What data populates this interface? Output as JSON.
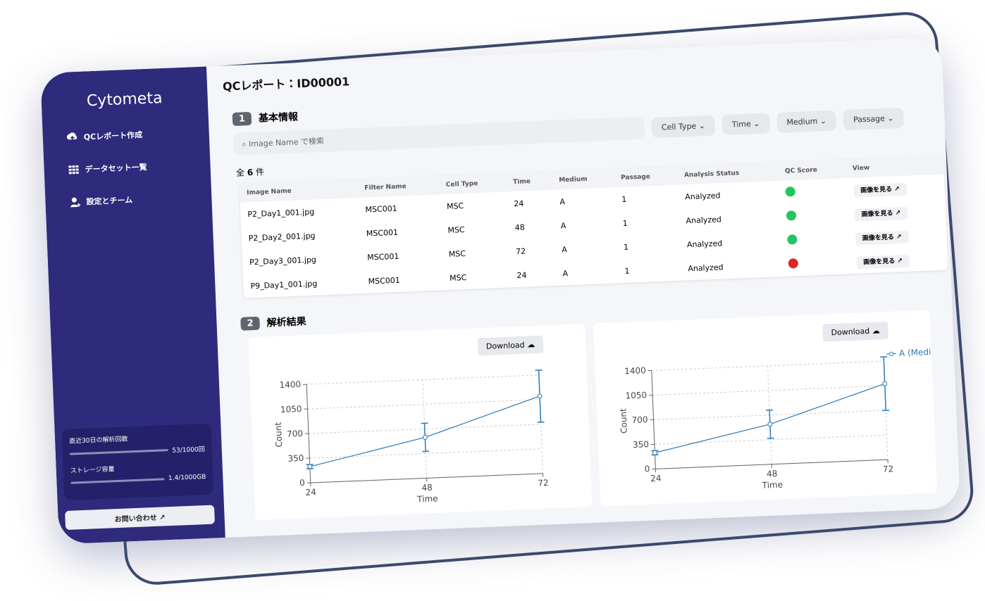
{
  "sidebar": {
    "brand": "Cytometa",
    "nav": [
      "QCレポート作成",
      "データセット一覧",
      "設定とチーム"
    ],
    "usage": [
      {
        "label": "直近30日の解析回数",
        "value": "53/1000回"
      },
      {
        "label": "ストレージ容量",
        "value": "1.4/1000GB"
      }
    ],
    "contact": "お問い合わせ"
  },
  "title": "QCレポート：ID00001",
  "sections": [
    {
      "number": "1",
      "title": "基本情報"
    },
    {
      "number": "2",
      "title": "解析結果"
    }
  ],
  "search": "Image Name で検索",
  "filters": [
    "Cell Type",
    "Time",
    "Medium",
    "Passage"
  ],
  "count": {
    "prefix": "全",
    "value": "6",
    "suffix": "件"
  },
  "table": {
    "header": [
      "Image Name",
      "Filter Name",
      "Cell Type",
      "Time",
      "Medium",
      "Passage",
      "Analysis Status",
      "QC Score",
      "View"
    ],
    "rows": [
      [
        "P2_Day1_001.jpg",
        "MSC001",
        "MSC",
        "24",
        "A",
        "1",
        "Analyzed"
      ],
      [
        "P2_Day2_001.jpg",
        "MSC001",
        "MSC",
        "48",
        "A",
        "1",
        "Analyzed"
      ],
      [
        "P2_Day3_001.jpg",
        "MSC001",
        "MSC",
        "72",
        "A",
        "1",
        "Analyzed"
      ],
      [
        "P9_Day1_001.jpg",
        "MSC001",
        "MSC",
        "24",
        "A",
        "1",
        "Analyzed"
      ]
    ],
    "qc_colors": [
      "#22c55e",
      "#22c55e",
      "#22c55e",
      "#dc2626"
    ],
    "view_label": "画像を見る"
  },
  "charts": [
    {
      "type": "line",
      "download": "Download",
      "ylabel": "Count",
      "xlabel": "Time",
      "x": [
        24,
        48,
        72
      ],
      "series": [
        {
          "color": "#2a78b5",
          "values": [
            230,
            580,
            1100
          ],
          "errors": [
            30,
            200,
            370
          ]
        }
      ],
      "xlim": [
        24,
        72
      ],
      "ylim": [
        0,
        1400
      ],
      "xticks": [
        24,
        48,
        72
      ],
      "yticks": [
        0,
        350,
        700,
        1050,
        1400
      ],
      "grid": true
    },
    {
      "type": "line",
      "download": "Download",
      "ylabel": "Count",
      "xlabel": "Time",
      "x": [
        24,
        48,
        72
      ],
      "series": [
        {
          "name": "A (Medium)",
          "color": "#2a78b5",
          "values": [
            230,
            570,
            1080
          ],
          "errors": [
            30,
            200,
            380
          ]
        }
      ],
      "xlim": [
        24,
        72
      ],
      "ylim": [
        0,
        1400
      ],
      "xticks": [
        24,
        48,
        72
      ],
      "yticks": [
        0,
        350,
        700,
        1050,
        1400
      ],
      "grid": true,
      "legend": "upper right"
    }
  ]
}
